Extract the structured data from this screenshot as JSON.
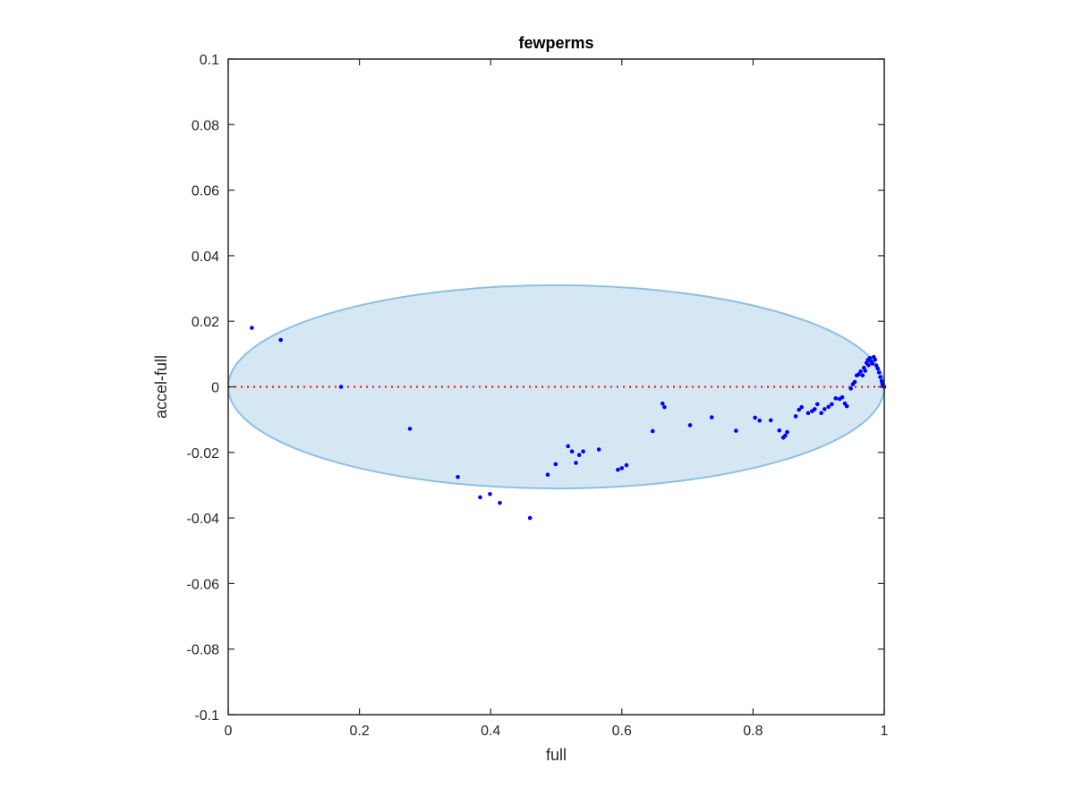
{
  "chart_data": {
    "type": "scatter",
    "title": "fewperms",
    "xlabel": "full",
    "ylabel": "accel-full",
    "xlim": [
      0,
      1
    ],
    "ylim": [
      -0.1,
      0.1
    ],
    "x_ticks": [
      0,
      0.2,
      0.4,
      0.6,
      0.8,
      1
    ],
    "x_tick_labels": [
      "0",
      "0.2",
      "0.4",
      "0.6",
      "0.8",
      "1"
    ],
    "y_ticks": [
      -0.1,
      -0.08,
      -0.06,
      -0.04,
      -0.02,
      0,
      0.02,
      0.04,
      0.06,
      0.08,
      0.1
    ],
    "y_tick_labels": [
      "-0.1",
      "-0.08",
      "-0.06",
      "-0.04",
      "-0.02",
      "0",
      "0.02",
      "0.04",
      "0.06",
      "0.08",
      "0.1"
    ],
    "grid": false,
    "legend": "none",
    "reference_line": {
      "y": 0,
      "style": "dotted",
      "color": "#ff0000"
    },
    "ellipse": {
      "cx": 0.5,
      "cy": 0,
      "rx": 0.5,
      "ry": 0.031,
      "fill": "#d6e7f4",
      "stroke": "#8cc0e2"
    },
    "marker_color": "#0000ff",
    "points": [
      [
        0.036,
        0.018
      ],
      [
        0.08,
        0.0143
      ],
      [
        0.172,
        0.0
      ],
      [
        0.277,
        -0.0128
      ],
      [
        0.35,
        -0.0275
      ],
      [
        0.384,
        -0.0337
      ],
      [
        0.399,
        -0.0327
      ],
      [
        0.414,
        -0.0354
      ],
      [
        0.46,
        -0.04
      ],
      [
        0.487,
        -0.0268
      ],
      [
        0.499,
        -0.0236
      ],
      [
        0.518,
        -0.0181
      ],
      [
        0.524,
        -0.0197
      ],
      [
        0.53,
        -0.0232
      ],
      [
        0.535,
        -0.0208
      ],
      [
        0.541,
        -0.0197
      ],
      [
        0.565,
        -0.0191
      ],
      [
        0.594,
        -0.0253
      ],
      [
        0.6,
        -0.0248
      ],
      [
        0.607,
        -0.0239
      ],
      [
        0.647,
        -0.0135
      ],
      [
        0.662,
        -0.0051
      ],
      [
        0.665,
        -0.0062
      ],
      [
        0.704,
        -0.0117
      ],
      [
        0.737,
        -0.0093
      ],
      [
        0.774,
        -0.0134
      ],
      [
        0.803,
        -0.0094
      ],
      [
        0.81,
        -0.0103
      ],
      [
        0.827,
        -0.0102
      ],
      [
        0.84,
        -0.0133
      ],
      [
        0.846,
        -0.0155
      ],
      [
        0.849,
        -0.0149
      ],
      [
        0.852,
        -0.0138
      ],
      [
        0.865,
        -0.009
      ],
      [
        0.87,
        -0.007
      ],
      [
        0.874,
        -0.0062
      ],
      [
        0.884,
        -0.008
      ],
      [
        0.89,
        -0.0074
      ],
      [
        0.894,
        -0.0068
      ],
      [
        0.898,
        -0.0053
      ],
      [
        0.904,
        -0.008
      ],
      [
        0.909,
        -0.0068
      ],
      [
        0.915,
        -0.0061
      ],
      [
        0.92,
        -0.0053
      ],
      [
        0.926,
        -0.0035
      ],
      [
        0.932,
        -0.0037
      ],
      [
        0.936,
        -0.0032
      ],
      [
        0.94,
        -0.0051
      ],
      [
        0.943,
        -0.0059
      ],
      [
        0.949,
        -0.0005
      ],
      [
        0.952,
        0.0008
      ],
      [
        0.955,
        0.0015
      ],
      [
        0.958,
        0.0035
      ],
      [
        0.961,
        0.0038
      ],
      [
        0.964,
        0.0047
      ],
      [
        0.967,
        0.0035
      ],
      [
        0.969,
        0.0058
      ],
      [
        0.971,
        0.0049
      ],
      [
        0.973,
        0.0073
      ],
      [
        0.975,
        0.0082
      ],
      [
        0.976,
        0.0066
      ],
      [
        0.978,
        0.0088
      ],
      [
        0.98,
        0.0077
      ],
      [
        0.982,
        0.0071
      ],
      [
        0.984,
        0.0091
      ],
      [
        0.986,
        0.0083
      ],
      [
        0.988,
        0.0065
      ],
      [
        0.99,
        0.0056
      ],
      [
        0.992,
        0.0044
      ],
      [
        0.994,
        0.003
      ],
      [
        0.996,
        0.0018
      ],
      [
        0.997,
        0.001
      ],
      [
        0.998,
        0.0005
      ],
      [
        0.999,
        0.0002
      ],
      [
        1.0,
        0.0
      ]
    ]
  }
}
